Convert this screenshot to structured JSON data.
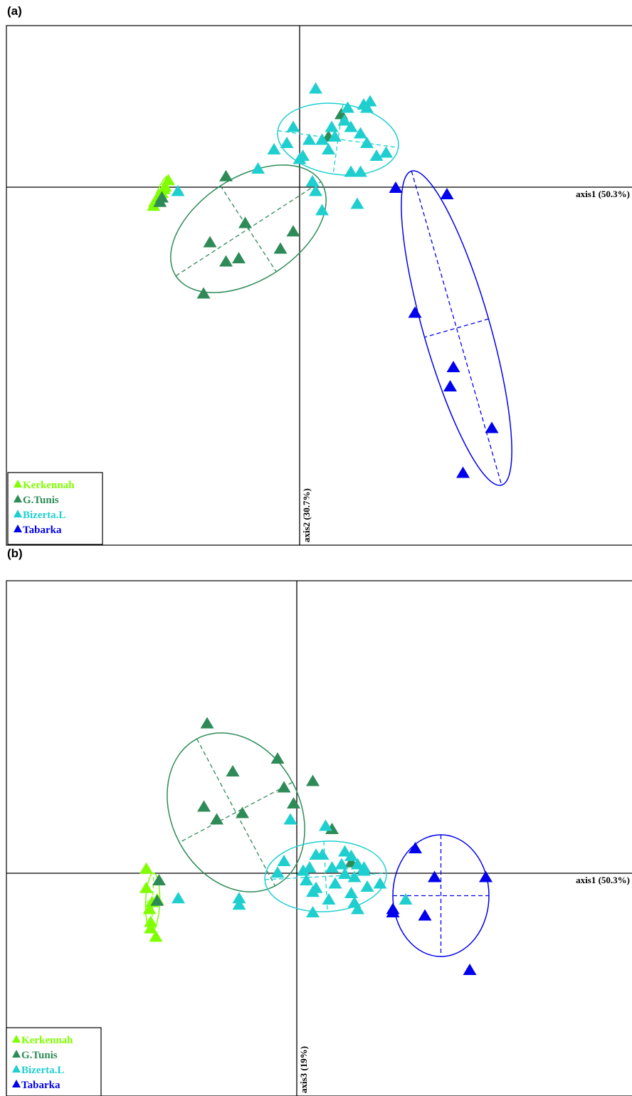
{
  "chart_data": [
    {
      "panel_label": "(a)",
      "type": "scatter",
      "xlabel": "axis1 (50.3%)",
      "ylabel": "axis2 (30.7%)",
      "legend": {
        "placement": "bottom-left",
        "entries": [
          {
            "name": "Kerkennah",
            "color": "#7fff00"
          },
          {
            "name": "G.Tunis",
            "color": "#2e8b57"
          },
          {
            "name": "Bizerta.L",
            "color": "#1fcfcf"
          },
          {
            "name": "Tabarka",
            "color": "#0000ee"
          }
        ]
      },
      "series": [
        {
          "name": "Kerkennah",
          "color": "#7fff00",
          "points": [
            [
              -2.05,
              0.12
            ],
            [
              -2.1,
              0.02
            ],
            [
              -2.12,
              -0.02
            ],
            [
              -2.2,
              -0.12
            ],
            [
              -2.22,
              -0.16
            ],
            [
              -2.26,
              -0.22
            ],
            [
              -2.28,
              -0.28
            ],
            [
              -2.15,
              -0.08
            ]
          ],
          "ellipse": {
            "cx": -2.17,
            "cy": -0.07,
            "rx": 0.26,
            "ry": 0.05,
            "angle": 66
          }
        },
        {
          "name": "G.Tunis",
          "color": "#2e8b57",
          "points": [
            [
              -1.15,
              0.18
            ],
            [
              -0.85,
              -0.55
            ],
            [
              -1.4,
              -0.85
            ],
            [
              -1.15,
              -1.15
            ],
            [
              -0.95,
              -1.1
            ],
            [
              -0.3,
              -0.95
            ],
            [
              -0.1,
              -0.68
            ],
            [
              -1.5,
              -1.65
            ],
            [
              0.65,
              1.15
            ],
            [
              0.45,
              0.8
            ],
            [
              -2.15,
              -0.15
            ],
            [
              -2.18,
              -0.22
            ]
          ],
          "ellipse": {
            "cx": -0.8,
            "cy": -0.65,
            "rx": 1.35,
            "ry": 0.8,
            "angle": 33
          }
        },
        {
          "name": "Bizerta.L",
          "color": "#1fcfcf",
          "points": [
            [
              0.25,
              1.55
            ],
            [
              0.75,
              1.25
            ],
            [
              1.0,
              1.3
            ],
            [
              1.1,
              1.35
            ],
            [
              0.95,
              0.85
            ],
            [
              0.45,
              0.6
            ],
            [
              0.55,
              0.8
            ],
            [
              -0.4,
              0.6
            ],
            [
              -0.2,
              0.7
            ],
            [
              -0.1,
              0.95
            ],
            [
              0.15,
              0.75
            ],
            [
              0.35,
              0.75
            ],
            [
              0.5,
              0.95
            ],
            [
              0.8,
              0.95
            ],
            [
              1.05,
              0.7
            ],
            [
              1.2,
              0.5
            ],
            [
              1.35,
              0.55
            ],
            [
              0.8,
              0.25
            ],
            [
              0.95,
              0.25
            ],
            [
              0.2,
              0.1
            ],
            [
              0.25,
              -0.05
            ],
            [
              0.35,
              -0.35
            ],
            [
              0.9,
              -0.25
            ],
            [
              -1.9,
              -0.05
            ],
            [
              0.05,
              0.5
            ],
            [
              0.0,
              0.45
            ],
            [
              -0.65,
              0.3
            ],
            [
              0.7,
              1.05
            ],
            [
              1.05,
              1.25
            ]
          ],
          "ellipse": {
            "cx": 0.6,
            "cy": 0.75,
            "rx": 0.95,
            "ry": 0.55,
            "angle": -8
          }
        },
        {
          "name": "Tabarka",
          "color": "#0000ee",
          "points": [
            [
              1.5,
              0.0
            ],
            [
              2.3,
              -0.1
            ],
            [
              1.8,
              -1.95
            ],
            [
              2.4,
              -2.8
            ],
            [
              2.35,
              -3.1
            ],
            [
              2.55,
              -4.45
            ],
            [
              3.0,
              -3.75
            ]
          ],
          "ellipse": {
            "cx": 2.45,
            "cy": -2.2,
            "rx": 2.55,
            "ry": 0.52,
            "angle": -74
          }
        }
      ]
    },
    {
      "panel_label": "(b)",
      "type": "scatter",
      "xlabel": "axis1 (50.3%)",
      "ylabel": "axis3 (19%)",
      "legend": {
        "placement": "bottom-left",
        "entries": [
          {
            "name": "Kerkennah",
            "color": "#7fff00"
          },
          {
            "name": "G.Tunis",
            "color": "#2e8b57"
          },
          {
            "name": "Bizerta.L",
            "color": "#1fcfcf"
          },
          {
            "name": "Tabarka",
            "color": "#0000ee"
          }
        ]
      },
      "series": [
        {
          "name": "Kerkennah",
          "color": "#7fff00",
          "points": [
            [
              -2.35,
              -0.22
            ],
            [
              -2.18,
              -0.4
            ],
            [
              -2.26,
              -0.44
            ],
            [
              -2.3,
              -0.55
            ],
            [
              -2.28,
              -0.75
            ],
            [
              -2.2,
              -0.98
            ],
            [
              -2.35,
              0.08
            ],
            [
              -2.28,
              -0.85
            ]
          ],
          "ellipse": {
            "cx": -2.25,
            "cy": -0.45,
            "rx": 0.45,
            "ry": 0.11,
            "angle": 88
          }
        },
        {
          "name": "G.Tunis",
          "color": "#2e8b57",
          "points": [
            [
              -1.4,
              2.35
            ],
            [
              -0.3,
              1.8
            ],
            [
              -1.0,
              1.6
            ],
            [
              -1.45,
              1.05
            ],
            [
              -0.85,
              0.95
            ],
            [
              -1.25,
              0.85
            ],
            [
              -0.05,
              1.1
            ],
            [
              0.25,
              1.45
            ],
            [
              -0.2,
              1.35
            ],
            [
              0.55,
              0.7
            ],
            [
              -2.15,
              -0.1
            ],
            [
              -2.18,
              -0.42
            ],
            [
              0.85,
              0.18
            ]
          ],
          "ellipse": {
            "cx": -0.95,
            "cy": 0.95,
            "rx": 1.3,
            "ry": 1.0,
            "angle": -62
          }
        },
        {
          "name": "Bizerta.L",
          "color": "#1fcfcf",
          "points": [
            [
              -1.85,
              -0.38
            ],
            [
              -0.9,
              -0.38
            ],
            [
              -0.9,
              -0.48
            ],
            [
              -0.1,
              0.85
            ],
            [
              0.45,
              0.75
            ],
            [
              0.3,
              0.3
            ],
            [
              -0.2,
              0.2
            ],
            [
              0.1,
              0.05
            ],
            [
              0.2,
              0.1
            ],
            [
              0.55,
              0.1
            ],
            [
              0.7,
              0.15
            ],
            [
              0.85,
              0.28
            ],
            [
              0.95,
              0.15
            ],
            [
              1.05,
              0.1
            ],
            [
              0.75,
              0.0
            ],
            [
              0.9,
              -0.05
            ],
            [
              1.1,
              -0.2
            ],
            [
              0.15,
              -0.1
            ],
            [
              0.25,
              -0.28
            ],
            [
              0.3,
              -0.22
            ],
            [
              0.6,
              -0.15
            ],
            [
              0.85,
              -0.3
            ],
            [
              1.3,
              -0.15
            ],
            [
              0.5,
              -0.4
            ],
            [
              0.9,
              -0.45
            ],
            [
              0.25,
              -0.6
            ],
            [
              0.95,
              -0.55
            ],
            [
              -0.3,
              0.02
            ],
            [
              1.7,
              -0.4
            ],
            [
              0.4,
              0.3
            ],
            [
              0.75,
              0.35
            ],
            [
              1.05,
              0.05
            ]
          ],
          "ellipse": {
            "cx": 0.45,
            "cy": -0.05,
            "rx": 0.95,
            "ry": 0.55,
            "angle": 3
          }
        },
        {
          "name": "Tabarka",
          "color": "#0000ee",
          "points": [
            [
              1.85,
              0.4
            ],
            [
              2.15,
              -0.05
            ],
            [
              2.95,
              -0.05
            ],
            [
              1.5,
              -0.55
            ],
            [
              1.5,
              -0.6
            ],
            [
              2.0,
              -0.65
            ],
            [
              2.7,
              -1.5
            ]
          ],
          "ellipse": {
            "cx": 2.25,
            "cy": -0.35,
            "rx": 0.75,
            "ry": 0.95,
            "angle": 0
          }
        }
      ]
    }
  ]
}
